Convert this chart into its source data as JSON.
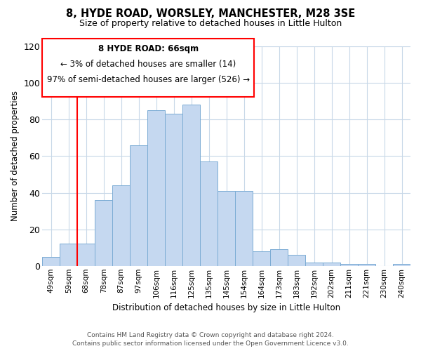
{
  "title": "8, HYDE ROAD, WORSLEY, MANCHESTER, M28 3SE",
  "subtitle": "Size of property relative to detached houses in Little Hulton",
  "xlabel": "Distribution of detached houses by size in Little Hulton",
  "ylabel": "Number of detached properties",
  "bin_labels": [
    "49sqm",
    "59sqm",
    "68sqm",
    "78sqm",
    "87sqm",
    "97sqm",
    "106sqm",
    "116sqm",
    "125sqm",
    "135sqm",
    "145sqm",
    "154sqm",
    "164sqm",
    "173sqm",
    "183sqm",
    "192sqm",
    "202sqm",
    "211sqm",
    "221sqm",
    "230sqm",
    "240sqm"
  ],
  "bar_heights": [
    5,
    12,
    12,
    36,
    44,
    66,
    85,
    83,
    88,
    57,
    41,
    41,
    8,
    9,
    6,
    2,
    2,
    1,
    1,
    0,
    1
  ],
  "bar_color": "#c5d8f0",
  "bar_edge_color": "#7bacd4",
  "annotation_line1": "8 HYDE ROAD: 66sqm",
  "annotation_line2": "← 3% of detached houses are smaller (14)",
  "annotation_line3": "97% of semi-detached houses are larger (526) →",
  "ylim": [
    0,
    120
  ],
  "yticks": [
    0,
    20,
    40,
    60,
    80,
    100,
    120
  ],
  "footer_line1": "Contains HM Land Registry data © Crown copyright and database right 2024.",
  "footer_line2": "Contains public sector information licensed under the Open Government Licence v3.0.",
  "background_color": "#ffffff",
  "grid_color": "#c8d8e8"
}
